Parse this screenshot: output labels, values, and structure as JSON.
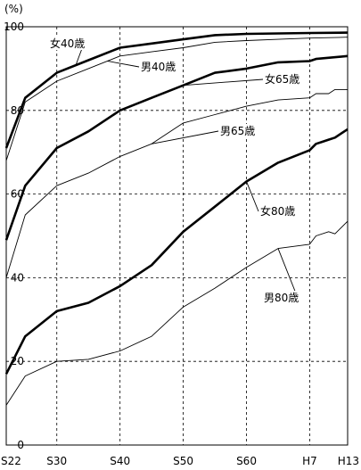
{
  "chart_data": {
    "type": "line",
    "ylabel": "(%)",
    "ylim": [
      0,
      100
    ],
    "y_ticks": [
      "0",
      "20",
      "40",
      "60",
      "80",
      "100"
    ],
    "x_ticks": [
      "S22",
      "S30",
      "S40",
      "S50",
      "S60",
      "H7",
      "H13"
    ],
    "x_tick_years": [
      1947,
      1955,
      1965,
      1975,
      1985,
      1995,
      2001
    ],
    "grid": true,
    "series": [
      {
        "name": "女40歳",
        "style": "thick",
        "points": [
          [
            1947,
            71
          ],
          [
            1950,
            83
          ],
          [
            1955,
            89
          ],
          [
            1960,
            92
          ],
          [
            1965,
            95
          ],
          [
            1970,
            96
          ],
          [
            1975,
            97
          ],
          [
            1980,
            98
          ],
          [
            1985,
            98.3
          ],
          [
            1990,
            98.4
          ],
          [
            1995,
            98.5
          ],
          [
            2001,
            98.6
          ]
        ]
      },
      {
        "name": "男40歳",
        "style": "thin",
        "points": [
          [
            1947,
            68
          ],
          [
            1950,
            82
          ],
          [
            1955,
            87
          ],
          [
            1960,
            90
          ],
          [
            1965,
            93
          ],
          [
            1970,
            94
          ],
          [
            1975,
            95
          ],
          [
            1980,
            96.3
          ],
          [
            1985,
            96.7
          ],
          [
            1990,
            97
          ],
          [
            1995,
            97.3
          ],
          [
            2001,
            97.5
          ]
        ]
      },
      {
        "name": "女65歳",
        "style": "thick",
        "points": [
          [
            1947,
            49
          ],
          [
            1950,
            62
          ],
          [
            1955,
            71
          ],
          [
            1960,
            75
          ],
          [
            1965,
            80
          ],
          [
            1970,
            83
          ],
          [
            1975,
            86
          ],
          [
            1980,
            89
          ],
          [
            1985,
            90
          ],
          [
            1990,
            91.5
          ],
          [
            1995,
            91.8
          ],
          [
            1996,
            92.3
          ],
          [
            2001,
            93
          ]
        ]
      },
      {
        "name": "男65歳",
        "style": "thin",
        "points": [
          [
            1947,
            40
          ],
          [
            1950,
            55
          ],
          [
            1955,
            62
          ],
          [
            1960,
            65
          ],
          [
            1965,
            69
          ],
          [
            1970,
            72
          ],
          [
            1975,
            77
          ],
          [
            1980,
            79
          ],
          [
            1985,
            81
          ],
          [
            1990,
            82.5
          ],
          [
            1995,
            83
          ],
          [
            1996,
            84
          ],
          [
            1998,
            84
          ],
          [
            1999,
            85
          ],
          [
            2001,
            85
          ]
        ]
      },
      {
        "name": "女80歳",
        "style": "thick",
        "points": [
          [
            1947,
            17
          ],
          [
            1950,
            26
          ],
          [
            1955,
            32
          ],
          [
            1960,
            34
          ],
          [
            1965,
            38
          ],
          [
            1970,
            43
          ],
          [
            1975,
            51
          ],
          [
            1980,
            57
          ],
          [
            1985,
            63
          ],
          [
            1990,
            67.5
          ],
          [
            1995,
            70.5
          ],
          [
            1996,
            72
          ],
          [
            1997,
            72.5
          ],
          [
            1998,
            73
          ],
          [
            1999,
            73.5
          ],
          [
            2001,
            75.5
          ]
        ]
      },
      {
        "name": "男80歳",
        "style": "thin",
        "points": [
          [
            1947,
            9.5
          ],
          [
            1950,
            16.5
          ],
          [
            1955,
            20
          ],
          [
            1960,
            20.5
          ],
          [
            1965,
            22.5
          ],
          [
            1970,
            26
          ],
          [
            1975,
            33
          ],
          [
            1980,
            37.5
          ],
          [
            1985,
            42.5
          ],
          [
            1990,
            47
          ],
          [
            1995,
            48
          ],
          [
            1996,
            50
          ],
          [
            1998,
            51
          ],
          [
            1999,
            50.5
          ],
          [
            2001,
            53.5
          ]
        ]
      }
    ],
    "annotations": [
      {
        "text": "女40歳",
        "series": "女40歳"
      },
      {
        "text": "男40歳",
        "series": "男40歳"
      },
      {
        "text": "女65歳",
        "series": "女65歳"
      },
      {
        "text": "男65歳",
        "series": "男65歳"
      },
      {
        "text": "女80歳",
        "series": "女80歳"
      },
      {
        "text": "男80歳",
        "series": "男80歳"
      }
    ]
  }
}
